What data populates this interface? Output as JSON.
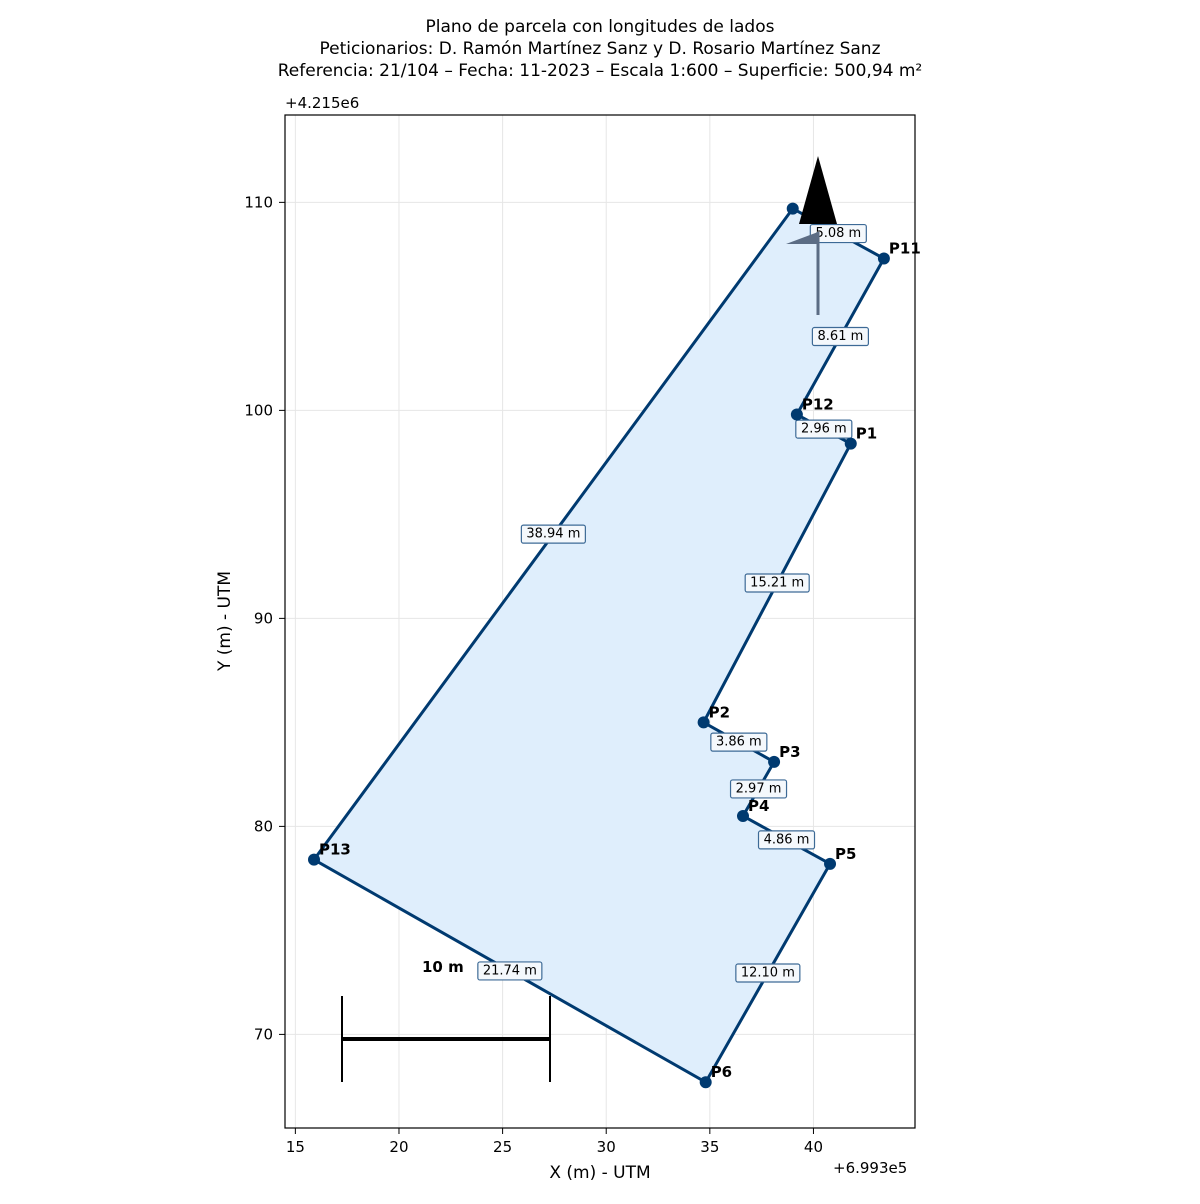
{
  "title": {
    "line1": "Plano de parcela con longitudes de lados",
    "line2": "Peticionarios: D. Ramón Martínez Sanz y D. Rosario Martínez Sanz",
    "line3": "Referencia: 21/104 – Fecha: 11-2023 – Escala 1:600 – Superficie: 500,94 m²"
  },
  "axes": {
    "xlabel": "X (m) - UTM",
    "ylabel": "Y (m) - UTM",
    "x_offset": "+6.993e5",
    "y_offset": "+4.215e6",
    "x_ticks": [
      "15",
      "20",
      "25",
      "30",
      "35",
      "40"
    ],
    "y_ticks": [
      "70",
      "80",
      "90",
      "100",
      "110"
    ]
  },
  "colors": {
    "outline": "#003a70",
    "fill": "#dfeefc",
    "north_arrow": "#000000",
    "north_arrow_shade": "#5b6c84"
  },
  "scale_bar": {
    "label": "10 m",
    "length_m": 10
  },
  "north_arrow": {
    "symbol": "north-arrow"
  },
  "chart_data": {
    "type": "scatter",
    "title": "Plano de parcela con longitudes de lados",
    "xlabel": "X (m) - UTM",
    "ylabel": "Y (m) - UTM",
    "xlim": [
      14.5,
      44.9
    ],
    "ylim": [
      65.5,
      114.2
    ],
    "grid": true,
    "points": [
      {
        "name": "P1",
        "x": 41.8,
        "y": 98.4
      },
      {
        "name": "P2",
        "x": 34.7,
        "y": 85.0
      },
      {
        "name": "P3",
        "x": 38.1,
        "y": 83.1
      },
      {
        "name": "P4",
        "x": 36.6,
        "y": 80.5
      },
      {
        "name": "P5",
        "x": 40.8,
        "y": 78.2
      },
      {
        "name": "P6",
        "x": 34.8,
        "y": 67.7
      },
      {
        "name": "P13",
        "x": 15.9,
        "y": 78.4
      },
      {
        "name": "",
        "x": 39.0,
        "y": 109.7
      },
      {
        "name": "P11",
        "x": 43.4,
        "y": 107.3
      },
      {
        "name": "P12",
        "x": 39.2,
        "y": 99.8
      }
    ],
    "sides": [
      {
        "from": 0,
        "to": 1,
        "length": "15.21 m"
      },
      {
        "from": 1,
        "to": 2,
        "length": "3.86 m"
      },
      {
        "from": 2,
        "to": 3,
        "length": "2.97 m"
      },
      {
        "from": 3,
        "to": 4,
        "length": "4.86 m"
      },
      {
        "from": 4,
        "to": 5,
        "length": "12.10 m"
      },
      {
        "from": 5,
        "to": 6,
        "length": "21.74 m"
      },
      {
        "from": 6,
        "to": 7,
        "length": "38.94 m"
      },
      {
        "from": 7,
        "to": 8,
        "length": "5.08 m"
      },
      {
        "from": 8,
        "to": 9,
        "length": "8.61 m"
      },
      {
        "from": 9,
        "to": 0,
        "length": "2.96 m"
      }
    ]
  }
}
